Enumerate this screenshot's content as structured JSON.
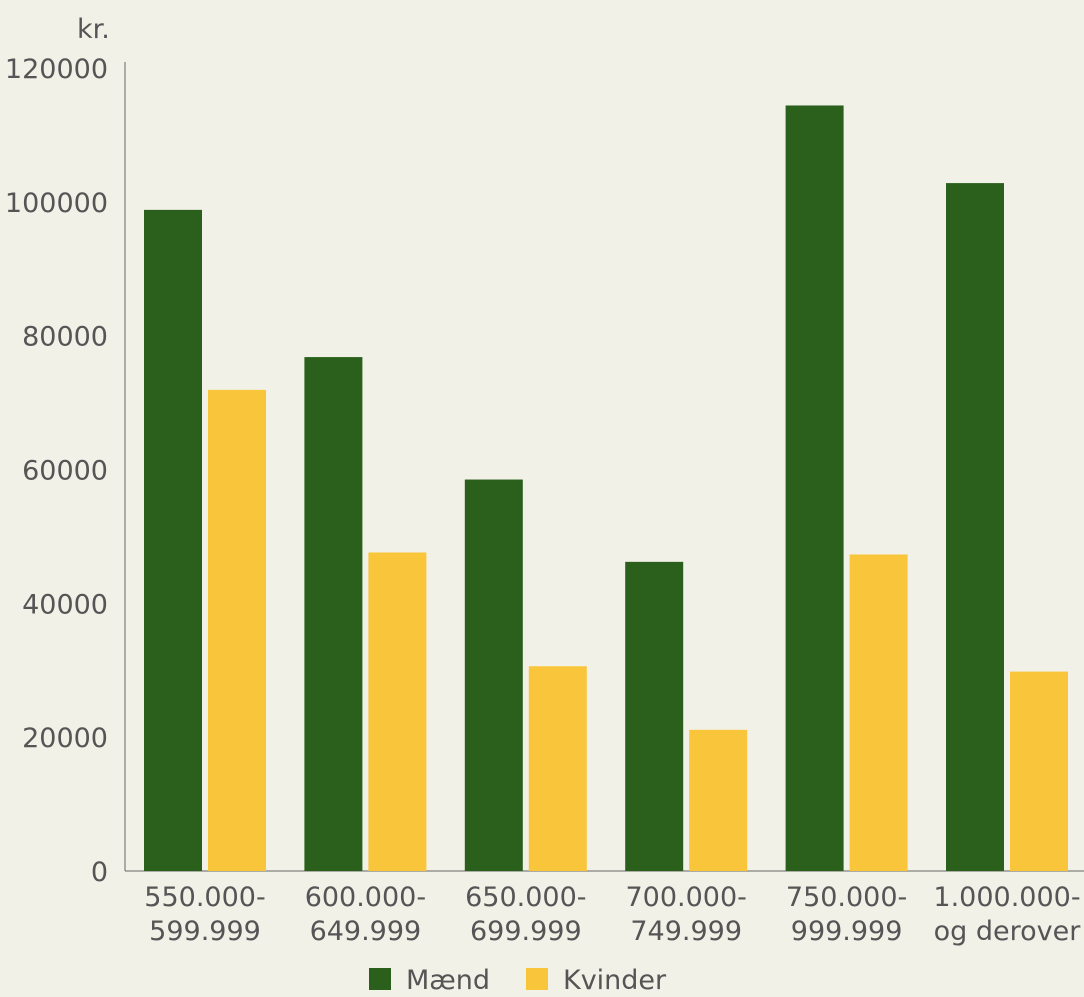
{
  "chart_data": {
    "type": "bar",
    "unit_label": "kr.",
    "categories": [
      [
        "550.000-",
        "599.999"
      ],
      [
        "600.000-",
        "649.999"
      ],
      [
        "650.000-",
        "699.999"
      ],
      [
        "700.000-",
        "749.999"
      ],
      [
        "750.000-",
        "999.999"
      ],
      [
        "1.000.000-",
        "og derover"
      ]
    ],
    "series": [
      {
        "name": "Mænd",
        "color": "#2a601b",
        "values": [
          98800,
          76800,
          58500,
          46200,
          114400,
          102800
        ]
      },
      {
        "name": "Kvinder",
        "color": "#f9c53b",
        "values": [
          71900,
          47600,
          30600,
          21100,
          47300,
          29800
        ]
      }
    ],
    "ylim": [
      0,
      120000
    ],
    "yticks": [
      0,
      20000,
      40000,
      60000,
      80000,
      100000,
      120000
    ],
    "grid": false,
    "legend_position": "bottom"
  }
}
